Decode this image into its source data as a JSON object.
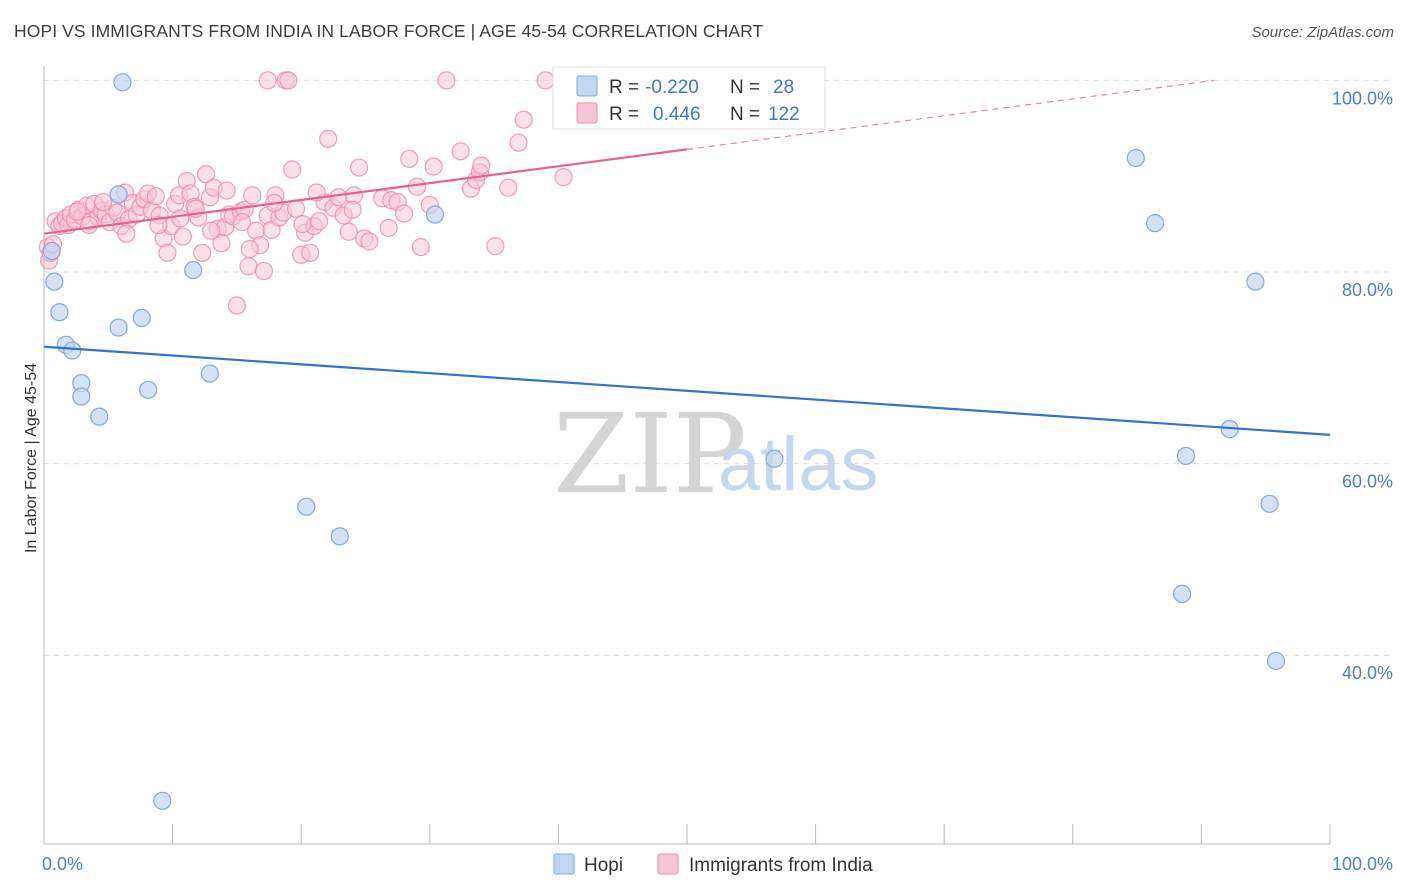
{
  "title": "HOPI VS IMMIGRANTS FROM INDIA IN LABOR FORCE | AGE 45-54 CORRELATION CHART",
  "source": "Source: ZipAtlas.com",
  "colors": {
    "hopi": "#7fa8e6",
    "hopi_fill": "#c3d6f2",
    "india": "#f08cae",
    "india_fill": "#f7c6d6",
    "hopi_line": "#2f74d0",
    "india_line": "#e8608c"
  },
  "legend": {
    "hopi": {
      "r_label": "R = ",
      "r_value": "-0.220",
      "n_label": "N = ",
      "n_value": "28"
    },
    "india": {
      "r_label": "R = ",
      "r_value": "0.446",
      "n_label": "N = ",
      "n_value": "122"
    }
  },
  "watermark": {
    "zip": "ZIP",
    "atlas": "atlas"
  },
  "chart_data": {
    "type": "scatter",
    "title": "HOPI VS IMMIGRANTS FROM INDIA IN LABOR FORCE | AGE 45-54 CORRELATION CHART",
    "xlabel": "",
    "ylabel": "In Labor Force | Age 45-54",
    "xlim": [
      0,
      100
    ],
    "ylim": [
      22,
      103
    ],
    "x_tick_labels": [
      "0.0%",
      "100.0%"
    ],
    "y_ticks": [
      40,
      60,
      80,
      100
    ],
    "y_tick_labels": [
      "40.0%",
      "60.0%",
      "80.0%",
      "100.0%"
    ],
    "legend_position": "top-center",
    "series": [
      {
        "name": "Hopi",
        "trend": {
          "x0": 0,
          "y0": 72.2,
          "x1": 100,
          "y1": 63.0
        },
        "points": [
          [
            6.1,
            99.8
          ],
          [
            0.6,
            82.2
          ],
          [
            0.8,
            79.0
          ],
          [
            1.2,
            75.8
          ],
          [
            1.7,
            72.4
          ],
          [
            2.2,
            71.8
          ],
          [
            2.9,
            68.4
          ],
          [
            2.9,
            67.0
          ],
          [
            4.3,
            64.9
          ],
          [
            5.8,
            88.1
          ],
          [
            5.8,
            74.2
          ],
          [
            7.6,
            75.2
          ],
          [
            8.1,
            67.7
          ],
          [
            11.6,
            80.2
          ],
          [
            12.9,
            69.4
          ],
          [
            9.2,
            24.8
          ],
          [
            20.4,
            55.5
          ],
          [
            23.0,
            52.4
          ],
          [
            30.4,
            86.0
          ],
          [
            56.8,
            60.5
          ],
          [
            84.9,
            91.9
          ],
          [
            86.4,
            85.1
          ],
          [
            94.2,
            79.0
          ],
          [
            92.2,
            63.6
          ],
          [
            88.8,
            60.8
          ],
          [
            95.3,
            55.8
          ],
          [
            88.5,
            46.4
          ],
          [
            95.8,
            39.4
          ]
        ]
      },
      {
        "name": "Immigrants from India",
        "trend": {
          "x0": 0,
          "y0": 84.0,
          "x1": 50,
          "y1": 92.8,
          "x1_dash": 91,
          "y1_dash": 100
        },
        "points": [
          [
            0.3,
            82.6
          ],
          [
            0.4,
            81.2
          ],
          [
            0.5,
            82.0
          ],
          [
            0.7,
            82.9
          ],
          [
            0.9,
            85.3
          ],
          [
            1.2,
            84.8
          ],
          [
            1.4,
            85.1
          ],
          [
            1.7,
            85.6
          ],
          [
            1.9,
            84.9
          ],
          [
            2.1,
            86.0
          ],
          [
            2.4,
            85.4
          ],
          [
            2.7,
            86.5
          ],
          [
            3.0,
            85.8
          ],
          [
            3.3,
            86.9
          ],
          [
            3.6,
            85.3
          ],
          [
            3.9,
            87.1
          ],
          [
            4.2,
            85.7
          ],
          [
            4.5,
            86.4
          ],
          [
            4.8,
            86.0
          ],
          [
            5.1,
            85.2
          ],
          [
            5.4,
            86.7
          ],
          [
            5.7,
            86.2
          ],
          [
            6.0,
            84.8
          ],
          [
            6.3,
            88.3
          ],
          [
            6.6,
            85.5
          ],
          [
            6.9,
            87.2
          ],
          [
            7.2,
            86.0
          ],
          [
            7.5,
            86.8
          ],
          [
            7.8,
            87.6
          ],
          [
            8.1,
            88.2
          ],
          [
            8.4,
            86.4
          ],
          [
            8.7,
            87.9
          ],
          [
            9.0,
            85.9
          ],
          [
            9.3,
            83.5
          ],
          [
            9.6,
            82.0
          ],
          [
            9.9,
            84.8
          ],
          [
            10.2,
            87.1
          ],
          [
            10.5,
            88.0
          ],
          [
            10.8,
            83.7
          ],
          [
            11.1,
            89.5
          ],
          [
            11.4,
            88.2
          ],
          [
            11.7,
            86.8
          ],
          [
            12.0,
            85.7
          ],
          [
            12.3,
            82.0
          ],
          [
            12.6,
            90.2
          ],
          [
            12.9,
            87.8
          ],
          [
            13.2,
            88.8
          ],
          [
            13.5,
            84.5
          ],
          [
            13.8,
            83.0
          ],
          [
            14.1,
            84.7
          ],
          [
            14.4,
            86.0
          ],
          [
            14.7,
            85.8
          ],
          [
            15.0,
            76.5
          ],
          [
            15.3,
            86.3
          ],
          [
            15.6,
            86.5
          ],
          [
            15.9,
            80.6
          ],
          [
            16.2,
            88.0
          ],
          [
            16.5,
            84.3
          ],
          [
            16.8,
            82.8
          ],
          [
            17.1,
            80.1
          ],
          [
            17.4,
            85.9
          ],
          [
            17.7,
            84.4
          ],
          [
            18.0,
            88.0
          ],
          [
            18.3,
            85.7
          ],
          [
            18.6,
            86.2
          ],
          [
            18.8,
            100.0
          ],
          [
            19.0,
            100.0
          ],
          [
            17.4,
            100.0
          ],
          [
            19.3,
            90.7
          ],
          [
            19.6,
            86.6
          ],
          [
            20.0,
            81.8
          ],
          [
            20.3,
            84.1
          ],
          [
            20.7,
            82.0
          ],
          [
            21.0,
            84.8
          ],
          [
            21.4,
            85.3
          ],
          [
            21.8,
            87.3
          ],
          [
            22.1,
            93.9
          ],
          [
            22.5,
            86.7
          ],
          [
            22.9,
            87.8
          ],
          [
            23.3,
            85.9
          ],
          [
            23.7,
            84.2
          ],
          [
            24.1,
            88.0
          ],
          [
            24.5,
            90.9
          ],
          [
            24.9,
            83.5
          ],
          [
            25.3,
            83.2
          ],
          [
            26.3,
            87.7
          ],
          [
            27.0,
            87.5
          ],
          [
            27.5,
            87.3
          ],
          [
            28.4,
            91.8
          ],
          [
            29.0,
            88.9
          ],
          [
            29.3,
            82.6
          ],
          [
            30.3,
            91.0
          ],
          [
            31.3,
            100.0
          ],
          [
            32.4,
            92.6
          ],
          [
            33.2,
            88.7
          ],
          [
            33.6,
            89.6
          ],
          [
            33.9,
            90.4
          ],
          [
            34.0,
            91.1
          ],
          [
            35.1,
            82.7
          ],
          [
            36.1,
            88.8
          ],
          [
            36.9,
            93.5
          ],
          [
            37.3,
            95.9
          ],
          [
            39.0,
            100.0
          ],
          [
            40.4,
            89.9
          ],
          [
            2.6,
            86.3
          ],
          [
            3.5,
            84.9
          ],
          [
            4.6,
            87.3
          ],
          [
            6.4,
            84.0
          ],
          [
            8.9,
            84.9
          ],
          [
            10.6,
            85.6
          ],
          [
            11.8,
            86.6
          ],
          [
            13.0,
            84.3
          ],
          [
            14.2,
            88.5
          ],
          [
            15.4,
            85.2
          ],
          [
            16.0,
            82.4
          ],
          [
            17.9,
            87.2
          ],
          [
            20.1,
            85.0
          ],
          [
            21.2,
            88.3
          ],
          [
            24.0,
            86.5
          ],
          [
            26.8,
            84.6
          ],
          [
            28.0,
            86.1
          ],
          [
            30.0,
            87.0
          ]
        ]
      }
    ]
  },
  "bottom_legend": {
    "hopi": "Hopi",
    "india": "Immigrants from India"
  }
}
